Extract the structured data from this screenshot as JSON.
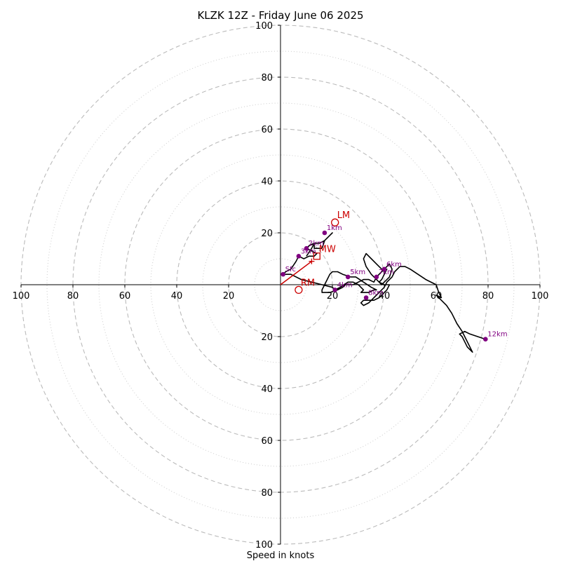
{
  "chart_data": {
    "type": "hodograph",
    "title": "KLZK 12Z - Friday June 06 2025",
    "xlabel": "Speed in knots",
    "ring_max": 100,
    "ring_step_major": 20,
    "ring_step_minor": 10,
    "tick_labels": {
      "top": [
        "20",
        "40",
        "60",
        "80",
        "100"
      ],
      "bottom": [
        "20",
        "40",
        "60",
        "80",
        "100"
      ],
      "left": [
        "20",
        "40",
        "60",
        "80",
        "100"
      ],
      "right": [
        "20",
        "40",
        "60",
        "80",
        "100"
      ]
    },
    "colors": {
      "trace": "#000000",
      "height_markers": "#800080",
      "motion": "#cc0000",
      "grid": "#bbbbbb"
    },
    "trace": [
      [
        10,
        11
      ],
      [
        12,
        14
      ],
      [
        13,
        16
      ],
      [
        13,
        14
      ],
      [
        16,
        14
      ],
      [
        17,
        17
      ],
      [
        19,
        19
      ],
      [
        20,
        20
      ],
      [
        19,
        19
      ],
      [
        17,
        17
      ],
      [
        15,
        16
      ],
      [
        13,
        16
      ],
      [
        11,
        15
      ],
      [
        10,
        14
      ],
      [
        12,
        13
      ],
      [
        14,
        12
      ],
      [
        13,
        11
      ],
      [
        11,
        11
      ],
      [
        9,
        10
      ],
      [
        7,
        11
      ],
      [
        6,
        9
      ],
      [
        4,
        6
      ],
      [
        2,
        5
      ],
      [
        1,
        4
      ],
      [
        4,
        4
      ],
      [
        8,
        2
      ],
      [
        12,
        1
      ],
      [
        16,
        0
      ],
      [
        20,
        -1
      ],
      [
        21,
        -2
      ],
      [
        23,
        -1
      ],
      [
        26,
        1
      ],
      [
        28,
        1
      ],
      [
        30,
        0
      ],
      [
        32,
        -2
      ],
      [
        31,
        -3
      ],
      [
        34,
        -3
      ],
      [
        36,
        -2
      ],
      [
        37,
        -2
      ],
      [
        35,
        -1
      ],
      [
        32,
        1
      ],
      [
        29,
        3
      ],
      [
        27,
        3
      ],
      [
        24,
        4
      ],
      [
        22,
        5
      ],
      [
        20,
        5
      ],
      [
        19,
        4
      ],
      [
        18,
        2
      ],
      [
        17,
        0
      ],
      [
        16,
        -2
      ],
      [
        16,
        -3
      ],
      [
        19,
        -3
      ],
      [
        22,
        -2
      ],
      [
        24,
        -1
      ],
      [
        25,
        0
      ],
      [
        27,
        0
      ],
      [
        28,
        0
      ],
      [
        30,
        1
      ],
      [
        32,
        2
      ],
      [
        34,
        2
      ],
      [
        36,
        1
      ],
      [
        37,
        3
      ],
      [
        39,
        5
      ],
      [
        41,
        7
      ],
      [
        42,
        8
      ],
      [
        43,
        6
      ],
      [
        42,
        3
      ],
      [
        40,
        1
      ],
      [
        39,
        0
      ],
      [
        37,
        2
      ],
      [
        35,
        4
      ],
      [
        33,
        7
      ],
      [
        32,
        10
      ],
      [
        33,
        12
      ],
      [
        35,
        10
      ],
      [
        37,
        8
      ],
      [
        39,
        6
      ],
      [
        40,
        5
      ],
      [
        41,
        6
      ],
      [
        40,
        4
      ],
      [
        39,
        2
      ],
      [
        38,
        1
      ],
      [
        40,
        0
      ],
      [
        42,
        0
      ],
      [
        41,
        -2
      ],
      [
        40,
        -3
      ],
      [
        38,
        -5
      ],
      [
        36,
        -6
      ],
      [
        34,
        -6
      ],
      [
        32,
        -6
      ],
      [
        31,
        -7
      ],
      [
        32,
        -8
      ],
      [
        34,
        -7
      ],
      [
        36,
        -5
      ],
      [
        38,
        -3
      ],
      [
        40,
        -1
      ],
      [
        41,
        1
      ],
      [
        43,
        3
      ],
      [
        44,
        5
      ],
      [
        46,
        7
      ],
      [
        48,
        7
      ],
      [
        50,
        6
      ],
      [
        53,
        4
      ],
      [
        56,
        2
      ],
      [
        60,
        0
      ],
      [
        61,
        -3
      ],
      [
        62,
        -5
      ],
      [
        60,
        -4
      ],
      [
        64,
        -8
      ],
      [
        66,
        -11
      ],
      [
        68,
        -15
      ],
      [
        70,
        -18
      ],
      [
        72,
        -22
      ],
      [
        74,
        -26
      ],
      [
        72,
        -24
      ],
      [
        70,
        -20
      ],
      [
        69,
        -19
      ],
      [
        71,
        -18
      ],
      [
        73,
        -19
      ],
      [
        76,
        -20
      ],
      [
        79,
        -21
      ]
    ],
    "height_markers": [
      {
        "label": "Sfc",
        "u": 1,
        "v": 4
      },
      {
        "label": "1km",
        "u": 17,
        "v": 20
      },
      {
        "label": "2km",
        "u": 10,
        "v": 14
      },
      {
        "label": "3km",
        "u": 7,
        "v": 11
      },
      {
        "label": "4km",
        "u": 21,
        "v": -2
      },
      {
        "label": "5km",
        "u": 26,
        "v": 3
      },
      {
        "label": "6km",
        "u": 40,
        "v": 6
      },
      {
        "label": "7km",
        "u": 37,
        "v": 3
      },
      {
        "label": "8km",
        "u": 33,
        "v": -5
      },
      {
        "label": "12km",
        "u": 79,
        "v": -21
      }
    ],
    "storm_motion": [
      {
        "label": "LM",
        "u": 21,
        "v": 24,
        "marker": "circle"
      },
      {
        "label": "MW",
        "u": 14,
        "v": 11,
        "marker": "square"
      },
      {
        "label": "RM",
        "u": 7,
        "v": -2,
        "marker": "circle"
      }
    ],
    "shear_vector": {
      "u": 12,
      "v": 9
    }
  }
}
